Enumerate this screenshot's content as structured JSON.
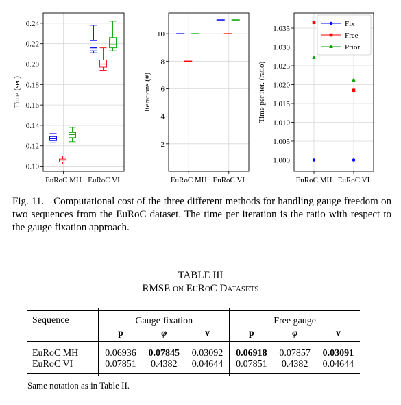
{
  "figure": {
    "charts": [
      {
        "type": "box",
        "ylabel": "Time (sec)",
        "ylim": [
          0.095,
          0.25
        ],
        "yticks": [
          "0.10",
          "0.12",
          "0.14",
          "0.16",
          "0.18",
          "0.20",
          "0.22",
          "0.24"
        ],
        "ytick_values": [
          0.1,
          0.12,
          0.14,
          0.16,
          0.18,
          0.2,
          0.22,
          0.24
        ],
        "categories": [
          "EuRoC MH",
          "EuRoC VI"
        ],
        "series": [
          {
            "color": "#0000ff",
            "boxes": [
              {
                "min": 0.123,
                "q1": 0.125,
                "median": 0.127,
                "q3": 0.129,
                "max": 0.132
              },
              {
                "min": 0.211,
                "q1": 0.213,
                "median": 0.216,
                "q3": 0.223,
                "max": 0.238
              }
            ]
          },
          {
            "color": "#ff0000",
            "boxes": [
              {
                "min": 0.102,
                "q1": 0.104,
                "median": 0.106,
                "q3": 0.107,
                "max": 0.11
              },
              {
                "min": 0.194,
                "q1": 0.197,
                "median": 0.2,
                "q3": 0.204,
                "max": 0.216
              }
            ]
          },
          {
            "color": "#00a000",
            "boxes": [
              {
                "min": 0.124,
                "q1": 0.128,
                "median": 0.131,
                "q3": 0.133,
                "max": 0.138
              },
              {
                "min": 0.213,
                "q1": 0.216,
                "median": 0.219,
                "q3": 0.226,
                "max": 0.242
              }
            ]
          }
        ]
      },
      {
        "type": "bar",
        "ylabel": "Iterations (#)",
        "ylim": [
          0,
          11.5
        ],
        "yticks": [
          "2",
          "4",
          "6",
          "8",
          "10"
        ],
        "ytick_values": [
          2,
          4,
          6,
          8,
          10
        ],
        "categories": [
          "EuRoC MH",
          "EuRoC VI"
        ],
        "series": [
          {
            "color": "#0000ff",
            "values": [
              10,
              11
            ]
          },
          {
            "color": "#ff0000",
            "values": [
              8,
              10
            ]
          },
          {
            "color": "#00a000",
            "values": [
              10,
              11
            ]
          }
        ]
      },
      {
        "type": "scatter",
        "ylabel": "Time per iter. (ratio)",
        "ylim": [
          0.997,
          1.039
        ],
        "yticks": [
          "1.000",
          "1.005",
          "1.010",
          "1.015",
          "1.020",
          "1.025",
          "1.030",
          "1.035"
        ],
        "ytick_values": [
          1.0,
          1.005,
          1.01,
          1.015,
          1.02,
          1.025,
          1.03,
          1.035
        ],
        "categories": [
          "EuRoC MH",
          "EuRoC VI"
        ],
        "legend": [
          "Fix",
          "Free",
          "Prior"
        ],
        "legend_position": "top-right",
        "series": [
          {
            "name": "Fix",
            "color": "#0000ff",
            "marker": "circle",
            "values": [
              1.0,
              1.0
            ]
          },
          {
            "name": "Free",
            "color": "#ff0000",
            "marker": "square",
            "values": [
              1.0365,
              1.0185
            ]
          },
          {
            "name": "Prior",
            "color": "#00a000",
            "marker": "triangle",
            "values": [
              1.0272,
              1.0212
            ]
          }
        ]
      }
    ],
    "caption_label": "Fig. 11.",
    "caption_text": "Computational cost of the three different methods for handling gauge freedom on two sequences from the EuRoC dataset. The time per iteration is the ratio with respect to the gauge fixation approach."
  },
  "table": {
    "title_line1": "TABLE III",
    "title_rmse": "RMSE",
    "title_on": "on",
    "title_euroc": "EuRoC",
    "title_datasets": "Datasets",
    "col_sequence": "Sequence",
    "group1": "Gauge fixation",
    "group2": "Free gauge",
    "sub_p": "p",
    "sub_phi": "φ",
    "sub_v": "v",
    "rows": [
      {
        "seq": "EuRoC MH",
        "vals": [
          "0.06936",
          "0.07845",
          "0.03092",
          "0.06918",
          "0.07857",
          "0.03091"
        ]
      },
      {
        "seq": "EuRoC VI",
        "vals": [
          "0.07851",
          "0.4382",
          "0.04644",
          "0.07851",
          "0.4382",
          "0.04644"
        ]
      }
    ],
    "note": "Same notation as in Table II."
  }
}
